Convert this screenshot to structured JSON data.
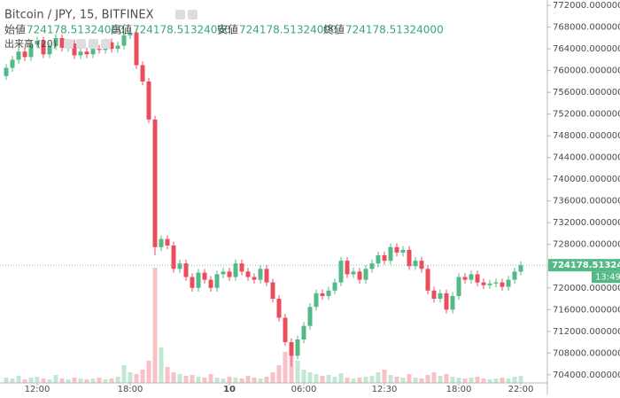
{
  "header": {
    "symbol": "Bitcoin / JPY, 15, BITFINEX",
    "open_label": "始値",
    "open_value": "724178.51324000",
    "high_label": "高値",
    "high_value": "724178.51324000",
    "low_label": "安値",
    "low_value": "724178.51324000",
    "close_label": "終値",
    "close_value": "724178.51324000",
    "volume_label": "出来高 (20)"
  },
  "chart_data": {
    "type": "candlestick",
    "categories": [
      null,
      null,
      null,
      null,
      null,
      "12:00",
      null,
      null,
      null,
      null,
      null,
      null,
      null,
      null,
      null,
      null,
      null,
      null,
      null,
      null,
      "18:00",
      null,
      null,
      null,
      null,
      null,
      null,
      null,
      null,
      null,
      null,
      null,
      null,
      null,
      null,
      null,
      "10",
      null,
      null,
      null,
      null,
      null,
      null,
      null,
      null,
      null,
      null,
      null,
      "06:00",
      null,
      null,
      null,
      null,
      null,
      null,
      null,
      null,
      null,
      null,
      null,
      null,
      "12:30",
      null,
      null,
      null,
      null,
      null,
      null,
      null,
      null,
      null,
      null,
      null,
      "18:00",
      null,
      null,
      null,
      null,
      null,
      null,
      null,
      null,
      null,
      "22:00"
    ],
    "open": [
      759000,
      760500,
      762000,
      763500,
      762500,
      764800,
      765500,
      763000,
      764500,
      766000,
      764200,
      765000,
      762800,
      763500,
      763000,
      764000,
      763800,
      765200,
      764000,
      764600,
      766500,
      767000,
      761000,
      758000,
      751000,
      727500,
      729000,
      727800,
      723500,
      724500,
      722000,
      720000,
      722800,
      721500,
      720000,
      722500,
      723000,
      722000,
      724500,
      723000,
      722000,
      721500,
      723500,
      721000,
      718000,
      714500,
      710000,
      707500,
      710500,
      713000,
      716500,
      719000,
      718500,
      719500,
      721000,
      725000,
      722500,
      723000,
      721500,
      723500,
      724500,
      726000,
      725000,
      727500,
      726500,
      727000,
      724000,
      725000,
      723500,
      719500,
      718000,
      719000,
      716000,
      718500,
      722000,
      721500,
      722500,
      721000,
      720500,
      720800,
      721000,
      720200,
      721500,
      723000
    ],
    "high": [
      761200,
      762700,
      764200,
      764200,
      765500,
      766200,
      766200,
      765200,
      766700,
      766700,
      765700,
      765700,
      764200,
      764200,
      764700,
      764700,
      765900,
      765900,
      765300,
      767200,
      767700,
      767700,
      761700,
      758700,
      751700,
      729700,
      729700,
      728500,
      725200,
      725200,
      722700,
      723500,
      723500,
      722200,
      723200,
      723700,
      723700,
      725200,
      725200,
      723700,
      722700,
      724200,
      724200,
      721700,
      718700,
      715200,
      710700,
      711200,
      713700,
      717200,
      719700,
      719700,
      720200,
      721700,
      725700,
      725700,
      723700,
      723700,
      724200,
      725200,
      726700,
      726700,
      728200,
      728200,
      727700,
      727700,
      725700,
      725700,
      724200,
      720200,
      719700,
      719700,
      719200,
      722700,
      722700,
      723200,
      723200,
      721700,
      721500,
      721700,
      721700,
      722200,
      723700,
      724900
    ],
    "low": [
      758300,
      759800,
      761300,
      761800,
      761800,
      764100,
      762300,
      762300,
      763800,
      763500,
      763500,
      762100,
      762100,
      762300,
      762300,
      763100,
      763100,
      763300,
      763300,
      763900,
      765800,
      760300,
      757300,
      750300,
      726000,
      726800,
      727100,
      722800,
      722800,
      721300,
      719300,
      719300,
      720800,
      719300,
      719300,
      721800,
      721300,
      721300,
      722300,
      721300,
      720800,
      720800,
      720300,
      717300,
      713800,
      709300,
      705500,
      706800,
      709800,
      712300,
      715800,
      717800,
      717800,
      718800,
      720300,
      721800,
      721800,
      720800,
      720800,
      722800,
      723800,
      724300,
      724300,
      725800,
      725800,
      723300,
      723300,
      722800,
      718800,
      717300,
      717300,
      715300,
      715300,
      717800,
      720800,
      720800,
      720300,
      719800,
      719800,
      720100,
      719500,
      719500,
      720800,
      722300
    ],
    "close": [
      760500,
      762000,
      763500,
      762500,
      764800,
      765500,
      763000,
      764500,
      766000,
      764200,
      765000,
      762800,
      763500,
      763000,
      764000,
      763800,
      765200,
      764000,
      764600,
      766500,
      767000,
      761000,
      758000,
      751000,
      727500,
      729000,
      727800,
      723500,
      724500,
      722000,
      720000,
      722800,
      721500,
      720000,
      722500,
      723000,
      722000,
      724500,
      723000,
      722000,
      721500,
      723500,
      721000,
      718000,
      714500,
      710000,
      707500,
      710500,
      713000,
      716500,
      719000,
      718500,
      719500,
      721000,
      725000,
      722500,
      723000,
      721500,
      723500,
      724500,
      726000,
      725000,
      727500,
      726500,
      727000,
      724000,
      725000,
      723500,
      719500,
      718000,
      719000,
      716000,
      718500,
      722000,
      721500,
      722500,
      721000,
      720500,
      720800,
      721000,
      720200,
      721500,
      723000,
      724178.51324
    ],
    "volume": [
      6,
      5,
      8,
      4,
      6,
      7,
      5,
      4,
      9,
      5,
      4,
      6,
      5,
      4,
      5,
      6,
      4,
      5,
      7,
      20,
      12,
      10,
      15,
      25,
      130,
      40,
      18,
      12,
      10,
      8,
      9,
      7,
      6,
      10,
      6,
      5,
      7,
      6,
      5,
      8,
      6,
      5,
      7,
      12,
      20,
      35,
      45,
      25,
      15,
      12,
      10,
      8,
      9,
      7,
      11,
      6,
      5,
      6,
      7,
      8,
      12,
      15,
      9,
      7,
      6,
      10,
      6,
      5,
      9,
      12,
      8,
      10,
      7,
      6,
      5,
      6,
      7,
      5,
      4,
      5,
      6,
      5,
      7,
      8
    ],
    "up_color": "#53b987",
    "down_color": "#eb4d5c",
    "ylim": [
      702500,
      773000
    ],
    "yticks": [
      {
        "value": 772000,
        "label": "772000.00000000"
      },
      {
        "value": 768000,
        "label": "768000.00000000"
      },
      {
        "value": 764000,
        "label": "764000.00000000"
      },
      {
        "value": 760000,
        "label": "760000.00000000"
      },
      {
        "value": 756000,
        "label": "756000.00000000"
      },
      {
        "value": 752000,
        "label": "752000.00000000"
      },
      {
        "value": 748000,
        "label": "748000.00000000"
      },
      {
        "value": 744000,
        "label": "744000.00000000"
      },
      {
        "value": 740000,
        "label": "740000.00000000"
      },
      {
        "value": 736000,
        "label": "736000.00000000"
      },
      {
        "value": 732000,
        "label": "732000.00000000"
      },
      {
        "value": 728000,
        "label": "728000.00000000"
      },
      {
        "value": 724000,
        "label": "724000.00000000"
      },
      {
        "value": 720000,
        "label": "720000.00000000"
      },
      {
        "value": 716000,
        "label": "716000.00000000"
      },
      {
        "value": 712000,
        "label": "712000.00000000"
      },
      {
        "value": 708000,
        "label": "708000.00000000"
      },
      {
        "value": 704000,
        "label": "704000.00000000"
      }
    ],
    "last_price": {
      "value": 724178.51324,
      "label": "724178.51324000"
    },
    "countdown": "13:49",
    "grid": false
  }
}
